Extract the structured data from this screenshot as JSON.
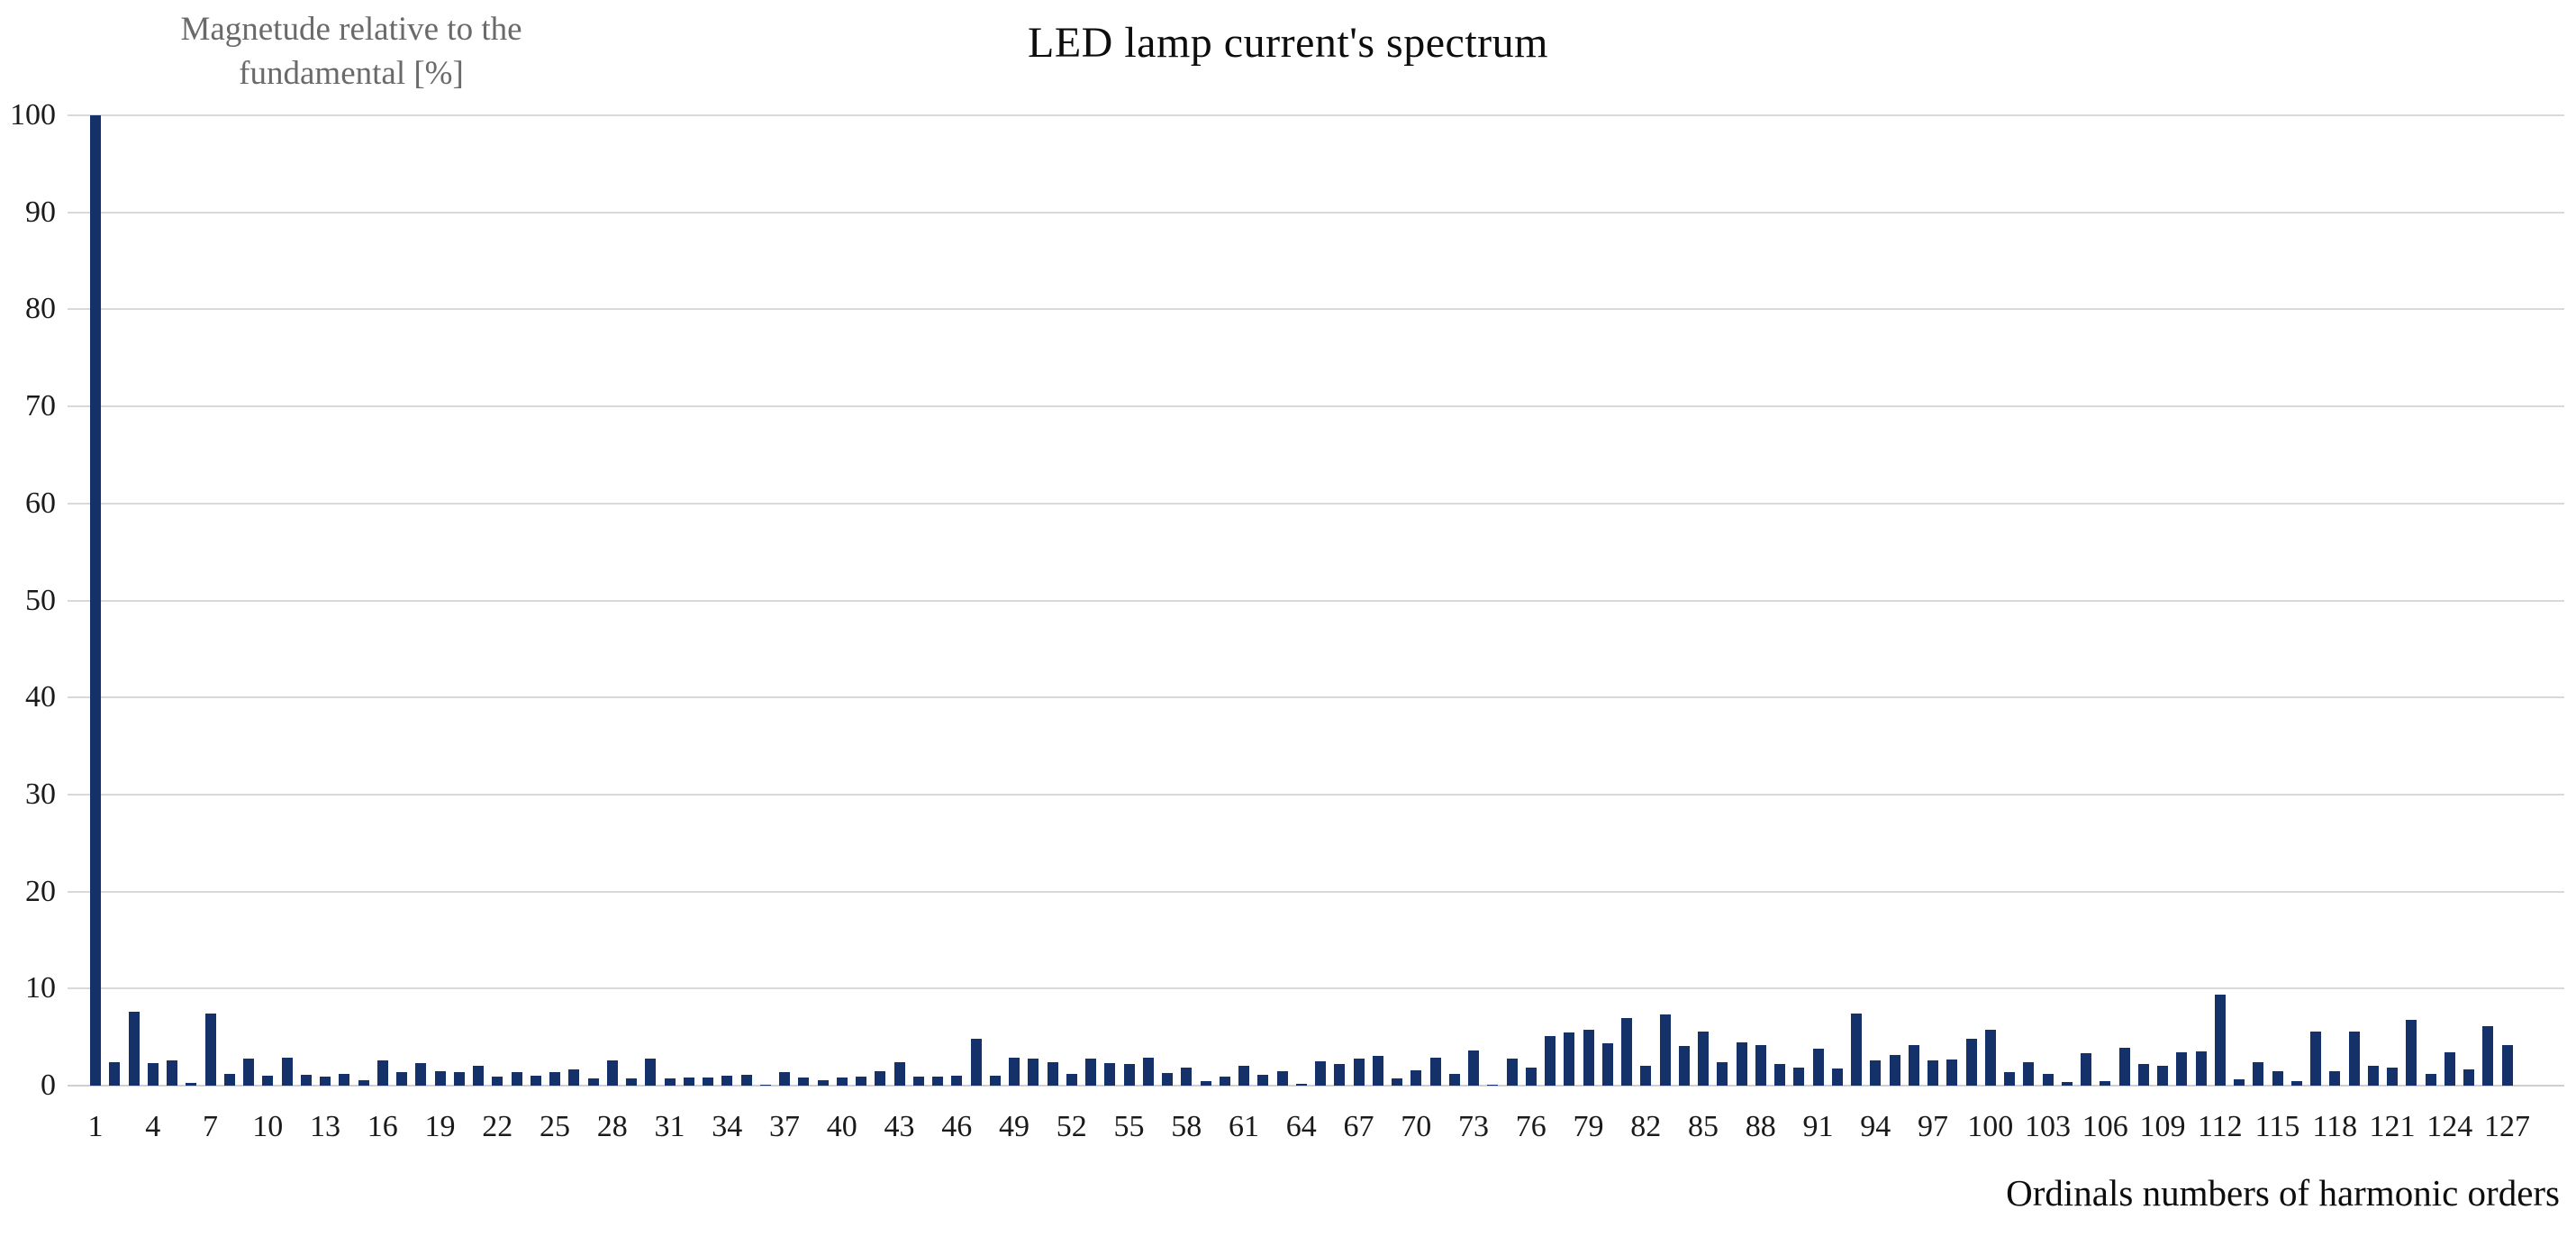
{
  "title": "LED lamp current's spectrum",
  "y_axis_title": {
    "line1": "Magnetude relative to the",
    "line2": "fundamental [%]"
  },
  "x_axis_title": "Ordinals numbers of harmonic orders",
  "colors": {
    "bar": "#143169",
    "gridline": "#d9d9d9",
    "axis_title_gray": "#6a6a6a",
    "tick_text": "#1a1a1a",
    "background": "#ffffff"
  },
  "chart_data": {
    "type": "bar",
    "title": "LED lamp current's spectrum",
    "xlabel": "Ordinals numbers of harmonic orders",
    "ylabel": "Magnetude relative to the fundamental [%]",
    "ylim": [
      0,
      100
    ],
    "grid": "horizontal",
    "legend": "none",
    "y_ticks": [
      0,
      10,
      20,
      30,
      40,
      50,
      60,
      70,
      80,
      90,
      100
    ],
    "x_tick_labels": [
      1,
      4,
      7,
      10,
      13,
      16,
      19,
      22,
      25,
      28,
      31,
      34,
      37,
      40,
      43,
      46,
      49,
      52,
      55,
      58,
      61,
      64,
      67,
      70,
      73,
      76,
      79,
      82,
      85,
      88,
      91,
      94,
      97,
      100,
      103,
      106,
      109,
      112,
      115,
      118,
      121,
      124,
      127
    ],
    "x": [
      1,
      2,
      3,
      4,
      5,
      6,
      7,
      8,
      9,
      10,
      11,
      12,
      13,
      14,
      15,
      16,
      17,
      18,
      19,
      20,
      21,
      22,
      23,
      24,
      25,
      26,
      27,
      28,
      29,
      30,
      31,
      32,
      33,
      34,
      35,
      36,
      37,
      38,
      39,
      40,
      41,
      42,
      43,
      44,
      45,
      46,
      47,
      48,
      49,
      50,
      51,
      52,
      53,
      54,
      55,
      56,
      57,
      58,
      59,
      60,
      61,
      62,
      63,
      64,
      65,
      66,
      67,
      68,
      69,
      70,
      71,
      72,
      73,
      74,
      75,
      76,
      77,
      78,
      79,
      80,
      81,
      82,
      83,
      84,
      85,
      86,
      87,
      88,
      89,
      90,
      91,
      92,
      93,
      94,
      95,
      96,
      97,
      98,
      99,
      100,
      101,
      102,
      103,
      104,
      105,
      106,
      107,
      108,
      109,
      110,
      111,
      112,
      113,
      114,
      115,
      116,
      117,
      118,
      119,
      120,
      121,
      122,
      123,
      124,
      125,
      126,
      127
    ],
    "values": [
      100,
      2.4,
      7.6,
      2.3,
      2.6,
      0.3,
      7.4,
      1.2,
      2.8,
      1.0,
      2.9,
      1.1,
      0.9,
      1.2,
      0.6,
      2.6,
      1.4,
      2.3,
      1.5,
      1.4,
      2.0,
      0.9,
      1.4,
      1.0,
      1.4,
      1.7,
      0.7,
      2.6,
      0.7,
      2.8,
      0.7,
      0.8,
      0.8,
      1.0,
      1.1,
      0.1,
      1.4,
      0.8,
      0.6,
      0.8,
      0.9,
      1.5,
      2.4,
      0.9,
      0.9,
      1.0,
      4.8,
      1.0,
      2.9,
      2.8,
      2.4,
      1.2,
      2.8,
      2.3,
      2.2,
      2.9,
      1.3,
      1.9,
      0.5,
      0.9,
      2.0,
      1.1,
      1.5,
      0.2,
      2.5,
      2.2,
      2.8,
      3.1,
      0.7,
      1.6,
      2.9,
      1.2,
      3.6,
      0.1,
      2.8,
      1.9,
      5.1,
      5.5,
      5.8,
      4.4,
      7.0,
      2.0,
      7.3,
      4.1,
      5.6,
      2.4,
      4.5,
      4.2,
      2.2,
      1.9,
      3.8,
      1.8,
      7.4,
      2.6,
      3.2,
      4.2,
      2.6,
      2.7,
      4.8,
      5.8,
      1.4,
      2.4,
      1.2,
      0.4,
      3.3,
      0.45,
      3.9,
      2.2,
      2.0,
      3.4,
      3.5,
      9.4,
      0.65,
      2.4,
      1.5,
      0.45,
      5.6,
      1.5,
      5.6,
      2.0,
      1.9,
      6.8,
      1.2,
      3.4,
      1.7,
      6.1,
      4.2
    ]
  }
}
